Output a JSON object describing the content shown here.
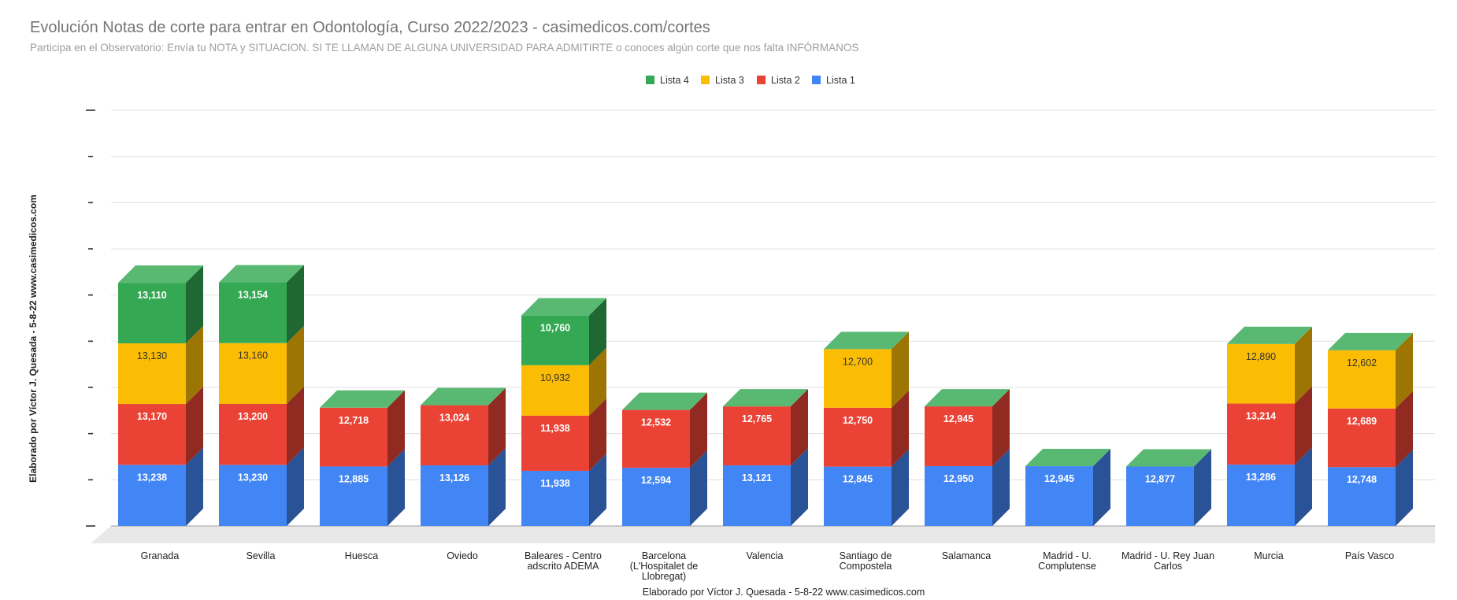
{
  "title": "Evolución Notas de corte para entrar en Odontología, Curso 2022/2023 - casimedicos.com/cortes",
  "subtitle": "Participa en el Observatorio: Envía tu NOTA y SITUACION. SI TE LLAMAN DE ALGUNA UNIVERSIDAD PARA ADMITIRTE o conoces algún corte que nos falta INFÓRMANOS",
  "colors": {
    "Lista 1": "#4285f4",
    "Lista 2": "#ea4335",
    "Lista 3": "#fbbc04",
    "Lista 4": "#34a853"
  },
  "chart_data": {
    "type": "bar",
    "stacked": true,
    "style": "3d",
    "title": "Evolución Notas de corte para entrar en Odontología, Curso 2022/2023 - casimedicos.com/cortes",
    "subtitle": "Participa en el Observatorio: Envía tu NOTA y SITUACION. SI TE LLAMAN DE ALGUNA UNIVERSIDAD PARA ADMITIRTE o conoces algún corte que nos falta INFÓRMANOS",
    "xlabel": "Elaborado por Víctor J. Quesada - 5-8-22  www.casimedicos.com",
    "ylabel": "Elaborado por Víctor J. Quesada - 5-8-22  www.casimedicos.com",
    "legend_position": "top-center",
    "legend_order": [
      "Lista 4",
      "Lista 3",
      "Lista 2",
      "Lista 1"
    ],
    "grid": true,
    "ylim": [
      0,
      90
    ],
    "y_ticks": [
      0,
      10,
      20,
      30,
      40,
      50,
      60,
      70,
      80,
      90
    ],
    "categories": [
      "Granada",
      "Sevilla",
      "Huesca",
      "Oviedo",
      "Baleares - Centro adscrito ADEMA",
      "Barcelona (L'Hospitalet de Llobregat)",
      "Valencia",
      "Santiago de Compostela",
      "Salamanca",
      "Madrid - U. Complutense",
      "Madrid - U. Rey Juan Carlos",
      "Murcia",
      "País Vasco"
    ],
    "category_lines": [
      [
        "Granada"
      ],
      [
        "Sevilla"
      ],
      [
        "Huesca"
      ],
      [
        "Oviedo"
      ],
      [
        "Baleares - Centro",
        "adscrito ADEMA"
      ],
      [
        "Barcelona",
        "(L'Hospitalet de",
        "Llobregat)"
      ],
      [
        "Valencia"
      ],
      [
        "Santiago de",
        "Compostela"
      ],
      [
        "Salamanca"
      ],
      [
        "Madrid - U.",
        "Complutense"
      ],
      [
        "Madrid - U. Rey Juan",
        "Carlos"
      ],
      [
        "Murcia"
      ],
      [
        "País Vasco"
      ]
    ],
    "series": [
      {
        "name": "Lista 1",
        "values": [
          13.238,
          13.23,
          12.885,
          13.126,
          11.938,
          12.594,
          13.121,
          12.845,
          12.95,
          12.945,
          12.877,
          13.286,
          12.748
        ],
        "labels": [
          "13,238",
          "13,230",
          "12,885",
          "13,126",
          "11,938",
          "12,594",
          "13,121",
          "12,845",
          "12,950",
          "12,945",
          "12,877",
          "13,286",
          "12,748"
        ]
      },
      {
        "name": "Lista 2",
        "values": [
          13.17,
          13.2,
          12.718,
          13.024,
          11.938,
          12.532,
          12.765,
          12.75,
          12.945,
          null,
          null,
          13.214,
          12.689
        ],
        "labels": [
          "13,170",
          "13,200",
          "12,718",
          "13,024",
          "11,938",
          "12,532",
          "12,765",
          "12,750",
          "12,945",
          null,
          null,
          "13,214",
          "12,689"
        ]
      },
      {
        "name": "Lista 3",
        "values": [
          13.13,
          13.16,
          null,
          null,
          10.932,
          null,
          null,
          12.7,
          null,
          null,
          null,
          12.89,
          12.602
        ],
        "labels": [
          "13,130",
          "13,160",
          null,
          null,
          "10,932",
          null,
          null,
          "12,700",
          null,
          null,
          null,
          "12,890",
          "12,602"
        ]
      },
      {
        "name": "Lista 4",
        "values": [
          13.11,
          13.154,
          null,
          null,
          10.76,
          null,
          null,
          null,
          null,
          null,
          null,
          null,
          null
        ],
        "labels": [
          "13,110",
          "13,154",
          null,
          null,
          "10,760",
          null,
          null,
          null,
          null,
          null,
          null,
          null,
          null
        ]
      }
    ]
  }
}
